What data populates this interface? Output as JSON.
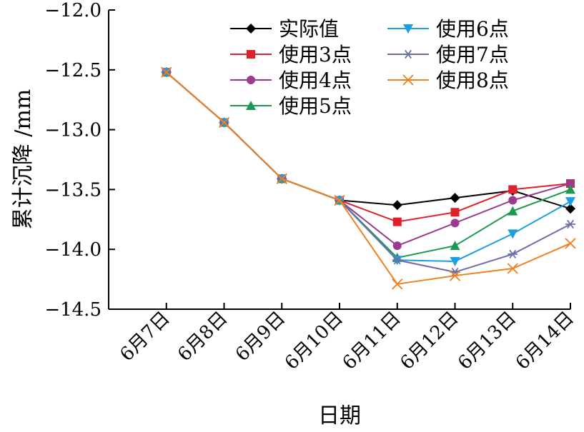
{
  "chart_data": {
    "type": "line",
    "title": "",
    "xlabel": "日期",
    "ylabel": "累计沉降 /mm",
    "categories": [
      "6月7日",
      "6月8日",
      "6月9日",
      "6月10日",
      "6月11日",
      "6月12日",
      "6月13日",
      "6月14日"
    ],
    "ylim": [
      -14.5,
      -12.0
    ],
    "yticks": [
      -12.0,
      -12.5,
      -13.0,
      -13.5,
      -14.0,
      -14.5
    ],
    "ytick_labels": [
      "−12.0",
      "−12.5",
      "−13.0",
      "−13.5",
      "−14.0",
      "−14.5"
    ],
    "grid": false,
    "legend_position": "top-right",
    "series": [
      {
        "name": "实际值",
        "color": "#000000",
        "marker": "diamond",
        "values": [
          -12.52,
          -12.94,
          -13.41,
          -13.59,
          -13.63,
          -13.57,
          -13.51,
          -13.66
        ]
      },
      {
        "name": "使用3点",
        "color": "#e0202a",
        "marker": "square",
        "values": [
          -12.52,
          -12.94,
          -13.41,
          -13.59,
          -13.77,
          -13.69,
          -13.5,
          -13.45
        ]
      },
      {
        "name": "使用4点",
        "color": "#9b3a8f",
        "marker": "circle",
        "values": [
          -12.52,
          -12.94,
          -13.41,
          -13.59,
          -13.97,
          -13.78,
          -13.59,
          -13.45
        ]
      },
      {
        "name": "使用5点",
        "color": "#1a9a50",
        "marker": "triangle-up",
        "values": [
          -12.52,
          -12.94,
          -13.41,
          -13.59,
          -14.07,
          -13.97,
          -13.68,
          -13.5
        ]
      },
      {
        "name": "使用6点",
        "color": "#1aa0e0",
        "marker": "triangle-down",
        "values": [
          -12.52,
          -12.94,
          -13.41,
          -13.59,
          -14.09,
          -14.1,
          -13.87,
          -13.6
        ]
      },
      {
        "name": "使用7点",
        "color": "#6b6fa8",
        "marker": "asterisk",
        "values": [
          -12.52,
          -12.94,
          -13.41,
          -13.59,
          -14.09,
          -14.19,
          -14.04,
          -13.79
        ]
      },
      {
        "name": "使用8点",
        "color": "#f08020",
        "marker": "x",
        "values": [
          -12.52,
          -12.94,
          -13.41,
          -13.59,
          -14.29,
          -14.22,
          -14.16,
          -13.95
        ]
      }
    ]
  }
}
